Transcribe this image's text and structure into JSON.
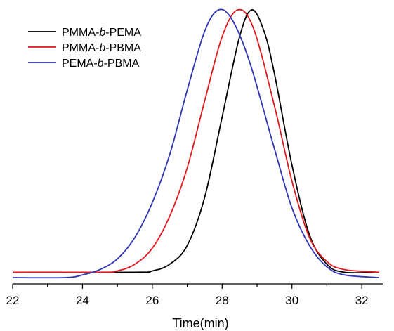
{
  "chart_data": {
    "type": "line",
    "title": "",
    "xlabel": "Time(min)",
    "ylabel": "",
    "xlim": [
      22,
      32.6
    ],
    "xticks": [
      "22",
      "24",
      "26",
      "28",
      "30",
      "32"
    ],
    "y_axis_shown": false,
    "grid": false,
    "legend_position": "top-left",
    "series": [
      {
        "name": "PMMA-b-PEMA",
        "legend": {
          "pre": "PMMA-",
          "ital": "b",
          "post": "-PEMA"
        },
        "color": "#000000",
        "x": [
          22.0,
          25.5,
          26.0,
          26.5,
          27.0,
          27.5,
          28.0,
          28.5,
          28.85,
          29.2,
          29.5,
          30.0,
          30.5,
          31.0,
          31.5,
          32.5
        ],
        "y": [
          0.02,
          0.02,
          0.025,
          0.05,
          0.12,
          0.3,
          0.6,
          0.9,
          1.0,
          0.92,
          0.76,
          0.42,
          0.16,
          0.05,
          0.02,
          0.02
        ]
      },
      {
        "name": "PMMA-b-PBMA",
        "legend": {
          "pre": "PMMA-",
          "ital": "b",
          "post": "-PBMA"
        },
        "color": "#e0191e",
        "x": [
          22.0,
          24.5,
          25.0,
          25.5,
          26.0,
          26.5,
          27.0,
          27.5,
          28.0,
          28.45,
          28.9,
          29.5,
          30.0,
          30.5,
          31.0,
          31.5,
          32.5
        ],
        "y": [
          0.02,
          0.02,
          0.025,
          0.05,
          0.11,
          0.23,
          0.41,
          0.66,
          0.9,
          1.0,
          0.93,
          0.64,
          0.36,
          0.15,
          0.06,
          0.03,
          0.02
        ]
      },
      {
        "name": "PEMA-b-PBMA",
        "legend": {
          "pre": "PEMA-",
          "ital": "b",
          "post": "-PBMA"
        },
        "color": "#2f35b3",
        "x": [
          22.0,
          23.5,
          24.0,
          24.5,
          25.0,
          25.5,
          26.0,
          26.5,
          27.0,
          27.5,
          27.9,
          28.3,
          28.8,
          29.5,
          30.0,
          30.5,
          31.0,
          31.5,
          32.5
        ],
        "y": [
          0.0,
          0.0,
          0.01,
          0.03,
          0.07,
          0.15,
          0.28,
          0.46,
          0.7,
          0.92,
          1.0,
          0.96,
          0.8,
          0.48,
          0.26,
          0.12,
          0.04,
          0.01,
          0.0
        ]
      }
    ]
  }
}
